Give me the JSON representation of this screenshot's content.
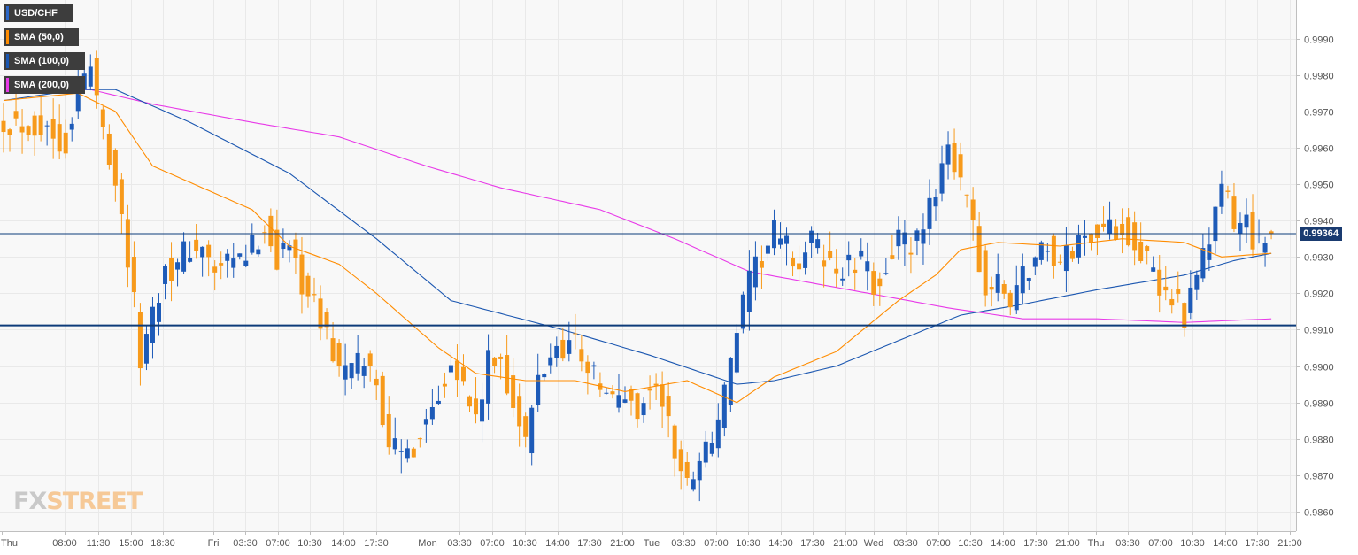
{
  "legend": [
    {
      "label": "USD/CHF",
      "color": "#2a66c8"
    },
    {
      "label": "SMA (50,0)",
      "color": "#ff8c00"
    },
    {
      "label": "SMA (100,0)",
      "color": "#1a56b0"
    },
    {
      "label": "SMA (200,0)",
      "color": "#e83ae8"
    }
  ],
  "current_price": "0.99364",
  "watermark": {
    "fx": "FX",
    "street": "STREET"
  },
  "colors": {
    "bull": "#1e5bb8",
    "bear": "#f79a1b",
    "sma50": "#ff8c00",
    "sma100": "#1a56b0",
    "sma200": "#e83ae8",
    "grid": "#e9e9e9",
    "background": "#f8f8f8",
    "hline": "#0d3b7a"
  },
  "chart_data": {
    "type": "candlestick",
    "symbol": "USD/CHF",
    "ylim": [
      0.9855,
      0.9996
    ],
    "yticks": [
      "0.9860",
      "0.9870",
      "0.9880",
      "0.9890",
      "0.9900",
      "0.9910",
      "0.9920",
      "0.9930",
      "0.9940",
      "0.9950",
      "0.9960",
      "0.9970",
      "0.9980",
      "0.9990"
    ],
    "xticks": [
      "Thu",
      "08:00",
      "11:30",
      "15:00",
      "18:30",
      "Fri",
      "03:30",
      "07:00",
      "10:30",
      "14:00",
      "17:30",
      "Mon",
      "03:30",
      "07:00",
      "10:30",
      "14:00",
      "17:30",
      "21:00",
      "Tue",
      "03:30",
      "07:00",
      "10:30",
      "14:00",
      "17:30",
      "21:00",
      "Wed",
      "03:30",
      "07:00",
      "10:30",
      "14:00",
      "17:30",
      "21:00",
      "Thu",
      "03:30",
      "07:00",
      "10:30",
      "14:00",
      "17:30",
      "21:00"
    ],
    "current_price": 0.99364,
    "horizontal_lines": [
      0.99364,
      0.99112
    ],
    "price_path": [
      [
        0,
        0.9968
      ],
      [
        6,
        0.9966
      ],
      [
        10,
        0.9962
      ],
      [
        12,
        0.9977
      ],
      [
        14,
        0.9982
      ],
      [
        15,
        0.9973
      ],
      [
        18,
        0.9952
      ],
      [
        20,
        0.993
      ],
      [
        22,
        0.9902
      ],
      [
        24,
        0.9915
      ],
      [
        26,
        0.9928
      ],
      [
        28,
        0.9927
      ],
      [
        30,
        0.9933
      ],
      [
        32,
        0.9931
      ],
      [
        34,
        0.9926
      ],
      [
        36,
        0.9927
      ],
      [
        38,
        0.9929
      ],
      [
        40,
        0.9932
      ],
      [
        42,
        0.9939
      ],
      [
        44,
        0.993
      ],
      [
        46,
        0.9933
      ],
      [
        48,
        0.9924
      ],
      [
        50,
        0.9916
      ],
      [
        52,
        0.9909
      ],
      [
        54,
        0.9899
      ],
      [
        56,
        0.9898
      ],
      [
        58,
        0.9902
      ],
      [
        60,
        0.9895
      ],
      [
        62,
        0.988
      ],
      [
        64,
        0.9874
      ],
      [
        66,
        0.9879
      ],
      [
        68,
        0.9886
      ],
      [
        70,
        0.9893
      ],
      [
        72,
        0.9904
      ],
      [
        74,
        0.9894
      ],
      [
        76,
        0.9885
      ],
      [
        78,
        0.99
      ],
      [
        80,
        0.9902
      ],
      [
        82,
        0.989
      ],
      [
        84,
        0.9878
      ],
      [
        86,
        0.9896
      ],
      [
        88,
        0.9903
      ],
      [
        90,
        0.9906
      ],
      [
        92,
        0.9907
      ],
      [
        94,
        0.99
      ],
      [
        96,
        0.9894
      ],
      [
        98,
        0.989
      ],
      [
        100,
        0.9892
      ],
      [
        102,
        0.9888
      ],
      [
        104,
        0.9894
      ],
      [
        106,
        0.9891
      ],
      [
        108,
        0.9876
      ],
      [
        110,
        0.9867
      ],
      [
        112,
        0.9876
      ],
      [
        114,
        0.988
      ],
      [
        116,
        0.9892
      ],
      [
        118,
        0.991
      ],
      [
        120,
        0.9922
      ],
      [
        122,
        0.993
      ],
      [
        124,
        0.9936
      ],
      [
        126,
        0.9932
      ],
      [
        128,
        0.9928
      ],
      [
        130,
        0.9934
      ],
      [
        132,
        0.993
      ],
      [
        134,
        0.9926
      ],
      [
        136,
        0.9927
      ],
      [
        138,
        0.9928
      ],
      [
        140,
        0.9922
      ],
      [
        142,
        0.9928
      ],
      [
        144,
        0.9935
      ],
      [
        146,
        0.9932
      ],
      [
        148,
        0.9935
      ],
      [
        150,
        0.995
      ],
      [
        152,
        0.9963
      ],
      [
        154,
        0.9948
      ],
      [
        156,
        0.9938
      ],
      [
        158,
        0.992
      ],
      [
        160,
        0.9922
      ],
      [
        162,
        0.9918
      ],
      [
        164,
        0.9925
      ],
      [
        166,
        0.993
      ],
      [
        168,
        0.9933
      ],
      [
        170,
        0.9928
      ],
      [
        172,
        0.9932
      ],
      [
        174,
        0.9936
      ],
      [
        176,
        0.9938
      ],
      [
        178,
        0.9937
      ],
      [
        180,
        0.9939
      ],
      [
        182,
        0.9935
      ],
      [
        184,
        0.9928
      ],
      [
        186,
        0.992
      ],
      [
        188,
        0.992
      ],
      [
        190,
        0.9915
      ],
      [
        192,
        0.9922
      ],
      [
        194,
        0.9935
      ],
      [
        196,
        0.995
      ],
      [
        198,
        0.9938
      ],
      [
        200,
        0.994
      ],
      [
        202,
        0.9933
      ],
      [
        204,
        0.99364
      ]
    ],
    "sma50": [
      [
        0,
        0.9973
      ],
      [
        12,
        0.9975
      ],
      [
        18,
        0.997
      ],
      [
        24,
        0.9955
      ],
      [
        40,
        0.9943
      ],
      [
        46,
        0.9933
      ],
      [
        54,
        0.9928
      ],
      [
        60,
        0.992
      ],
      [
        70,
        0.9905
      ],
      [
        76,
        0.9898
      ],
      [
        84,
        0.9896
      ],
      [
        92,
        0.9896
      ],
      [
        100,
        0.9893
      ],
      [
        110,
        0.9896
      ],
      [
        118,
        0.989
      ],
      [
        124,
        0.9897
      ],
      [
        134,
        0.9904
      ],
      [
        144,
        0.9918
      ],
      [
        150,
        0.9925
      ],
      [
        154,
        0.9932
      ],
      [
        160,
        0.9934
      ],
      [
        170,
        0.9933
      ],
      [
        180,
        0.9935
      ],
      [
        190,
        0.9934
      ],
      [
        196,
        0.993
      ],
      [
        204,
        0.9931
      ]
    ],
    "sma100": [
      [
        0,
        0.9973
      ],
      [
        12,
        0.9976
      ],
      [
        18,
        0.9976
      ],
      [
        30,
        0.9967
      ],
      [
        46,
        0.9953
      ],
      [
        60,
        0.9935
      ],
      [
        72,
        0.9918
      ],
      [
        90,
        0.991
      ],
      [
        104,
        0.9903
      ],
      [
        118,
        0.9895
      ],
      [
        124,
        0.9896
      ],
      [
        134,
        0.99
      ],
      [
        144,
        0.9907
      ],
      [
        154,
        0.9914
      ],
      [
        164,
        0.9917
      ],
      [
        176,
        0.9921
      ],
      [
        190,
        0.9925
      ],
      [
        198,
        0.9929
      ],
      [
        204,
        0.9931
      ]
    ],
    "sma200": [
      [
        0,
        0.9976
      ],
      [
        14,
        0.9976
      ],
      [
        24,
        0.9972
      ],
      [
        40,
        0.9967
      ],
      [
        54,
        0.9963
      ],
      [
        68,
        0.9955
      ],
      [
        80,
        0.9949
      ],
      [
        96,
        0.9943
      ],
      [
        108,
        0.9935
      ],
      [
        120,
        0.9926
      ],
      [
        136,
        0.9921
      ],
      [
        152,
        0.9916
      ],
      [
        164,
        0.9913
      ],
      [
        176,
        0.9913
      ],
      [
        190,
        0.9912
      ],
      [
        204,
        0.9913
      ]
    ]
  }
}
